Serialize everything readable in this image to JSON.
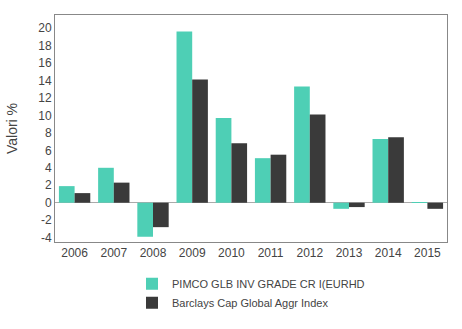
{
  "chart_data": {
    "type": "bar",
    "ylabel": "Valori %",
    "categories": [
      "2006",
      "2007",
      "2008",
      "2009",
      "2010",
      "2011",
      "2012",
      "2013",
      "2014",
      "2015"
    ],
    "series": [
      {
        "name": "PIMCO GLB INV GRADE CR I(EURHD",
        "color": "#4ECFB5",
        "values": [
          1.9,
          4.0,
          -3.9,
          19.6,
          9.7,
          5.1,
          13.3,
          -0.7,
          7.3,
          0.05
        ]
      },
      {
        "name": "Barclays Cap Global Aggr Index",
        "color": "#3A3A3A",
        "values": [
          1.1,
          2.3,
          -2.8,
          14.1,
          6.8,
          5.5,
          10.1,
          -0.5,
          7.5,
          -0.7
        ]
      }
    ],
    "ylim": [
      -4.5,
      21.5
    ],
    "yticks": [
      -4,
      -2,
      0,
      2,
      4,
      6,
      8,
      10,
      12,
      14,
      16,
      18,
      20
    ],
    "grid": false,
    "legend": "bottom"
  }
}
